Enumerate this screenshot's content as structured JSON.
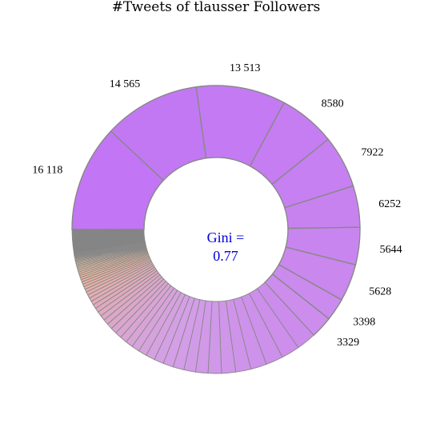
{
  "chart_data": {
    "type": "pie",
    "style": "donut",
    "title": "#Tweets of tlausser Followers",
    "center_text": [
      "Gini =",
      "0.77"
    ],
    "labeled_values": [
      16118,
      14565,
      13513,
      8580,
      7922,
      6252,
      5644,
      5628,
      3398,
      3329
    ],
    "labels": [
      "16 118",
      "14 565",
      "13 513",
      "8580",
      "7922",
      "6252",
      "5644",
      "5628",
      "3398",
      "3329"
    ],
    "unlabeled_segment_count": 57,
    "zero_segment_count": 17,
    "colors": {
      "purple": "#c275f4",
      "lavender": "#d4a0e6",
      "salmon": "#e8b39e",
      "beige": "#f1dba0",
      "zero_gray": "#858585",
      "stroke": "#888888",
      "center_text": "#0000dd"
    }
  }
}
